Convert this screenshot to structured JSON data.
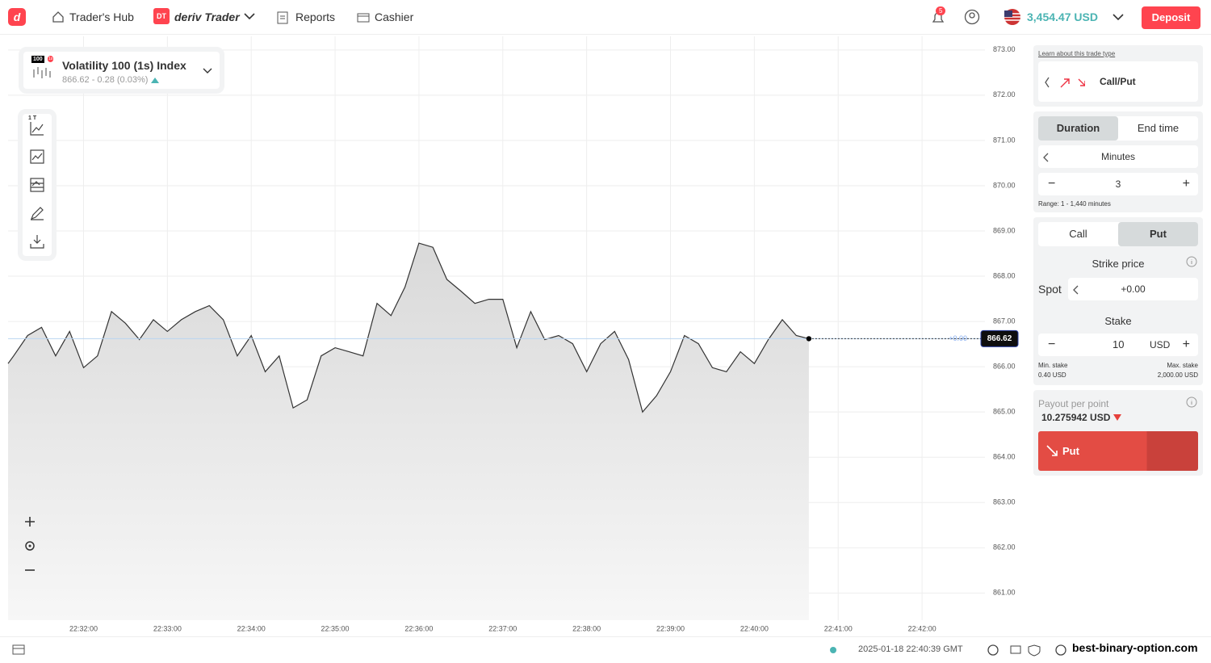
{
  "header": {
    "brand_badge": "DT",
    "brand": "deriv Trader",
    "nav": [
      "Trader's Hub",
      "Reports",
      "Cashier"
    ],
    "notifications": "5",
    "balance": "3,454.47 USD",
    "deposit": "Deposit"
  },
  "symbol": {
    "badge": "100",
    "badge_small": "1s",
    "name": "Volatility 100 (1s) Index",
    "quote": "866.62 - 0.28 (0.03%)"
  },
  "toolbar": {
    "interval": "1 T"
  },
  "chart": {
    "type": "line",
    "color": "#333333",
    "x": [
      "22:31:06",
      "22:31:10",
      "22:31:20",
      "22:31:30",
      "22:31:40",
      "22:31:50",
      "22:32:00",
      "22:32:10",
      "22:32:20",
      "22:32:30",
      "22:32:40",
      "22:32:50",
      "22:33:00",
      "22:33:10",
      "22:33:20",
      "22:33:30",
      "22:33:40",
      "22:33:50",
      "22:34:00",
      "22:34:10",
      "22:34:20",
      "22:34:30",
      "22:34:40",
      "22:34:50",
      "22:35:00",
      "22:35:10",
      "22:35:20",
      "22:35:30",
      "22:35:40",
      "22:35:50",
      "22:36:00",
      "22:36:10",
      "22:36:20",
      "22:36:30",
      "22:36:40",
      "22:36:50",
      "22:37:00",
      "22:37:10",
      "22:37:20",
      "22:37:30",
      "22:37:40",
      "22:37:50",
      "22:38:00",
      "22:38:10",
      "22:38:20",
      "22:38:30",
      "22:38:40",
      "22:38:50",
      "22:39:00",
      "22:39:10",
      "22:39:20",
      "22:39:30",
      "22:39:40",
      "22:39:50",
      "22:40:00",
      "22:40:10",
      "22:40:20",
      "22:40:30",
      "22:40:39"
    ],
    "values": [
      866.07,
      866.24,
      866.69,
      866.87,
      866.24,
      866.78,
      865.98,
      866.24,
      867.22,
      866.96,
      866.6,
      867.04,
      866.78,
      867.04,
      867.22,
      867.35,
      867.04,
      866.24,
      866.69,
      865.89,
      866.24,
      865.09,
      865.27,
      866.24,
      866.42,
      866.33,
      866.24,
      867.4,
      867.13,
      867.76,
      868.73,
      868.64,
      867.93,
      867.67,
      867.4,
      867.49,
      867.49,
      866.42,
      867.22,
      866.6,
      866.69,
      866.51,
      865.89,
      866.51,
      866.78,
      866.16,
      865.0,
      865.36,
      865.89,
      866.69,
      866.51,
      865.98,
      865.89,
      866.33,
      866.07,
      866.6,
      867.04,
      866.69,
      866.62
    ],
    "current_price": 866.62,
    "barrier_label": "+0.00",
    "xlim": [
      "22:31:06",
      "22:42:45"
    ],
    "xticks": [
      "22:32:00",
      "22:33:00",
      "22:34:00",
      "22:35:00",
      "22:36:00",
      "22:37:00",
      "22:38:00",
      "22:39:00",
      "22:40:00",
      "22:41:00",
      "22:42:00"
    ],
    "ylim": [
      860.4,
      873.3
    ],
    "yticks": [
      {
        "value": 861,
        "label": "861.00"
      },
      {
        "value": 862,
        "label": "862.00"
      },
      {
        "value": 863,
        "label": "863.00"
      },
      {
        "value": 864,
        "label": "864.00"
      },
      {
        "value": 865,
        "label": "865.00"
      },
      {
        "value": 866,
        "label": "866.00"
      },
      {
        "value": 867,
        "label": "867.00"
      },
      {
        "value": 868,
        "label": "868.00"
      },
      {
        "value": 869,
        "label": "869.00"
      },
      {
        "value": 870,
        "label": "870.00"
      },
      {
        "value": 871,
        "label": "871.00"
      },
      {
        "value": 872,
        "label": "872.00"
      },
      {
        "value": 873,
        "label": "873.00"
      }
    ],
    "grid": true
  },
  "sidebar": {
    "learn_link": "Learn about this trade type",
    "trade_type": "Call/Put",
    "duration_tabs": [
      "Duration",
      "End time"
    ],
    "unit": "Minutes",
    "duration": "3",
    "range": "Range: 1 - 1,440 minutes",
    "contract_tabs": [
      "Call",
      "Put"
    ],
    "strike_title": "Strike price",
    "spot_label": "Spot",
    "spot_value": "+0.00",
    "stake_title": "Stake",
    "stake": "10",
    "currency": "USD",
    "min_stake_label": "Min. stake",
    "min_stake": "0.40 USD",
    "max_stake_label": "Max. stake",
    "max_stake": "2,000.00 USD",
    "payout_label": "Payout per point",
    "payout": "10.275942 USD",
    "purchase": "Put"
  },
  "footer": {
    "timestamp": "2025-01-18 22:40:39 GMT",
    "watermark": "best-binary-option.com"
  }
}
